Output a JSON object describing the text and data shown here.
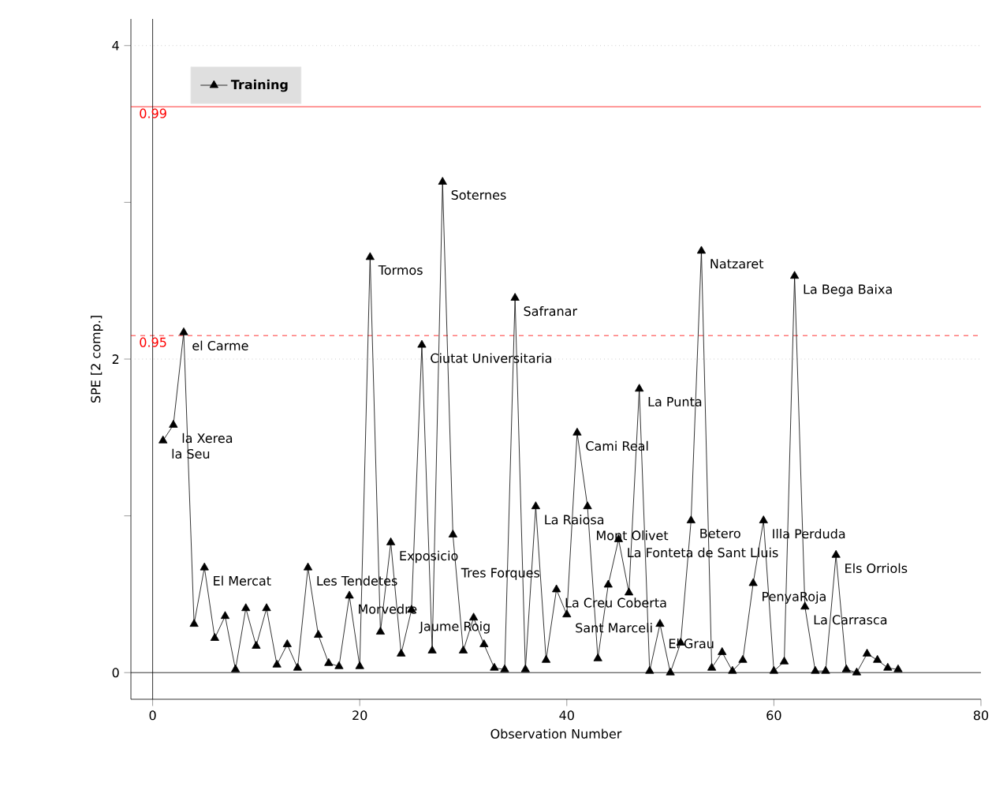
{
  "chart_data": {
    "type": "line",
    "xlabel": "Observation Number",
    "ylabel": "SPE [2 comp.]",
    "xlim": [
      -2.1,
      80
    ],
    "ylim": [
      -0.17,
      4.17
    ],
    "xticks": [
      0,
      20,
      40,
      60,
      80
    ],
    "yticks": [
      0,
      {
        "value": 1,
        "label": null
      },
      2,
      {
        "value": 3,
        "label": null
      },
      4
    ],
    "grid": "y",
    "legend": "top left",
    "marker": "triangle",
    "line_style": "solid",
    "x": [
      1,
      2,
      3,
      4,
      5,
      6,
      7,
      8,
      9,
      10,
      11,
      12,
      13,
      14,
      15,
      16,
      17,
      18,
      19,
      20,
      21,
      22,
      23,
      24,
      25,
      26,
      27,
      28,
      29,
      30,
      31,
      32,
      33,
      34,
      35,
      36,
      37,
      38,
      39,
      40,
      41,
      42,
      43,
      44,
      45,
      46,
      47,
      48,
      49,
      50,
      51,
      52,
      53,
      54,
      55,
      56,
      57,
      58,
      59,
      60,
      61,
      62,
      63,
      64,
      65,
      66,
      67,
      68,
      69,
      70,
      71,
      72
    ],
    "series": [
      {
        "name": "Training",
        "color": "#000000",
        "values": [
          1.48,
          1.58,
          2.17,
          0.31,
          0.67,
          0.22,
          0.36,
          0.02,
          0.41,
          0.17,
          0.41,
          0.05,
          0.18,
          0.03,
          0.67,
          0.24,
          0.06,
          0.04,
          0.49,
          0.04,
          2.65,
          0.26,
          0.83,
          0.12,
          0.4,
          2.09,
          0.14,
          3.13,
          0.88,
          0.14,
          0.35,
          0.18,
          0.03,
          0.02,
          2.39,
          0.02,
          1.06,
          0.08,
          0.53,
          0.37,
          1.53,
          1.06,
          0.09,
          0.56,
          0.85,
          0.51,
          1.81,
          0.01,
          0.31,
          0.0,
          0.19,
          0.97,
          2.69,
          0.03,
          0.13,
          0.01,
          0.08,
          0.57,
          0.97,
          0.01,
          0.07,
          2.53,
          0.42,
          0.01,
          0.01,
          0.75,
          0.02,
          0.0,
          0.12,
          0.08,
          0.03,
          0.02
        ]
      }
    ],
    "ref_lines": [
      {
        "axis": "y",
        "value": 3.61,
        "color": "#ff0000",
        "line_style": "solid"
      },
      {
        "axis": "y",
        "value": 2.15,
        "color": "#ff0000",
        "line_style": "dashed"
      },
      {
        "axis": "x",
        "value": 0,
        "color": "#000000",
        "line_style": "solid"
      },
      {
        "axis": "y",
        "value": 0,
        "color": "#000000",
        "line_style": "solid"
      }
    ],
    "annotations": [
      {
        "text": "0.99",
        "x": -1.5,
        "y": 3.61
      },
      {
        "text": "0.95",
        "x": -1.5,
        "y": 2.15
      },
      {
        "text": "la Seu",
        "x": 1,
        "y": 1.48
      },
      {
        "text": "la Xerea",
        "x": 2,
        "y": 1.58
      },
      {
        "text": "el Carme",
        "x": 3,
        "y": 2.17
      },
      {
        "text": "El Mercat",
        "x": 5,
        "y": 0.67
      },
      {
        "text": "Les Tendetes",
        "x": 15,
        "y": 0.67
      },
      {
        "text": "Morvedre",
        "x": 19,
        "y": 0.49
      },
      {
        "text": "Tormos",
        "x": 21,
        "y": 2.65
      },
      {
        "text": "Exposicio",
        "x": 23,
        "y": 0.83
      },
      {
        "text": "Jaume Roig",
        "x": 25,
        "y": 0.4
      },
      {
        "text": "Ciutat Universitaria",
        "x": 26,
        "y": 2.09
      },
      {
        "text": "Soternes",
        "x": 28,
        "y": 3.13
      },
      {
        "text": "Tres Forques",
        "x": 29,
        "y": 0.88
      },
      {
        "text": "Safranar",
        "x": 35,
        "y": 2.39
      },
      {
        "text": "La Raiosa",
        "x": 37,
        "y": 1.06
      },
      {
        "text": "La Creu Coberta",
        "x": 39,
        "y": 0.53
      },
      {
        "text": "Sant Marceli",
        "x": 40,
        "y": 0.37
      },
      {
        "text": "Cami Real",
        "x": 41,
        "y": 1.53
      },
      {
        "text": "Mont Olivet",
        "x": 42,
        "y": 1.06
      },
      {
        "text": "La Fonteta de Sant Lluis",
        "x": 45,
        "y": 0.85
      },
      {
        "text": "La Punta",
        "x": 47,
        "y": 1.81
      },
      {
        "text": "El Grau",
        "x": 49,
        "y": 0.31
      },
      {
        "text": "Betero",
        "x": 52,
        "y": 0.97
      },
      {
        "text": "Natzaret",
        "x": 53,
        "y": 2.69
      },
      {
        "text": "PenyaRoja",
        "x": 58,
        "y": 0.57
      },
      {
        "text": "Illa Perduda",
        "x": 59,
        "y": 0.97
      },
      {
        "text": "La Bega Baixa",
        "x": 62,
        "y": 2.53
      },
      {
        "text": "La Carrasca",
        "x": 63,
        "y": 0.42
      },
      {
        "text": "Els Orriols",
        "x": 66,
        "y": 0.75
      }
    ]
  }
}
